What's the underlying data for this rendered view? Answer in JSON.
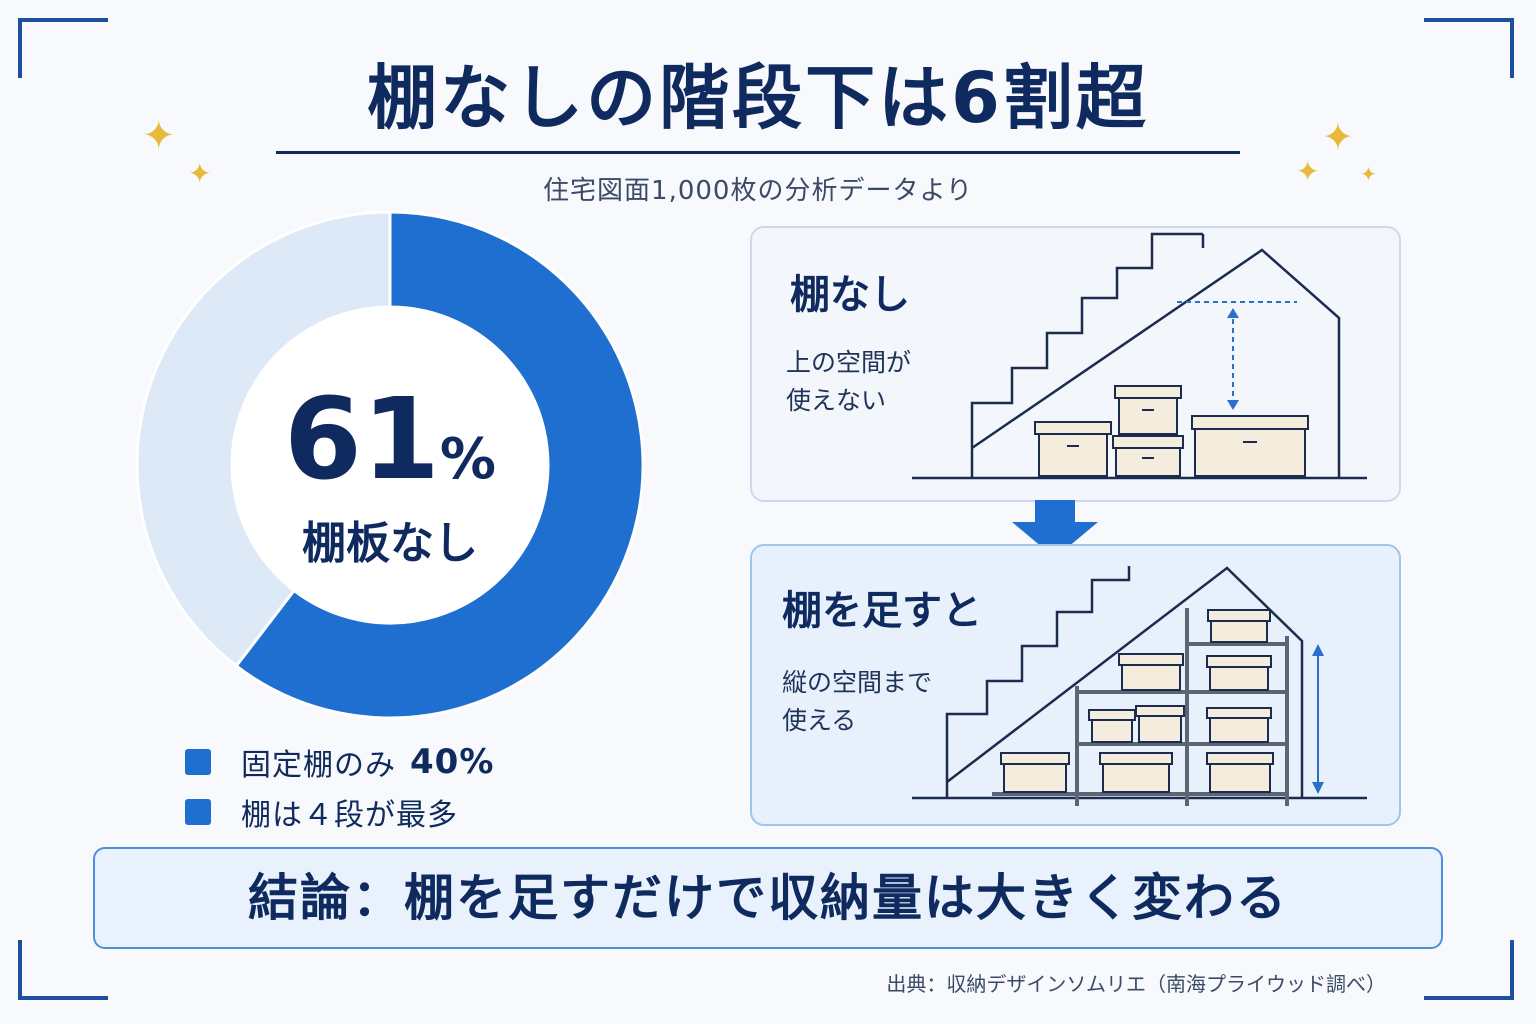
{
  "title": "棚なしの階段下は6割超",
  "subtitle": "住宅図面1,000枚の分析データより",
  "chart_data": {
    "type": "pie",
    "variant": "donut",
    "slices": [
      {
        "label": "棚板なし",
        "value": 61,
        "color": "#1e6fd0"
      },
      {
        "label": "固定棚のみ",
        "value": 40,
        "color": "#dde9f7"
      }
    ],
    "center_value": "61",
    "center_unit": "%",
    "center_label": "棚板なし"
  },
  "legend": [
    {
      "text": "固定棚のみ",
      "value": "40%",
      "color": "#1e6fd0"
    },
    {
      "text": "棚は４段が最多",
      "value": "",
      "color": "#1e6fd0"
    }
  ],
  "panel_before": {
    "title": "棚なし",
    "desc_line1": "上の空間が",
    "desc_line2": "使えない"
  },
  "panel_after": {
    "title": "棚を足すと",
    "desc_line1": "縦の空間まで",
    "desc_line2": "使える"
  },
  "conclusion": "結論：棚を足すだけで収納量は大きく変わる",
  "source": "出典：収納デザインソムリエ（南海プライウッド調べ）",
  "colors": {
    "primary": "#1e6fd0",
    "light": "#dde9f7",
    "navy": "#0e2a5e",
    "gold": "#e8b93a"
  }
}
